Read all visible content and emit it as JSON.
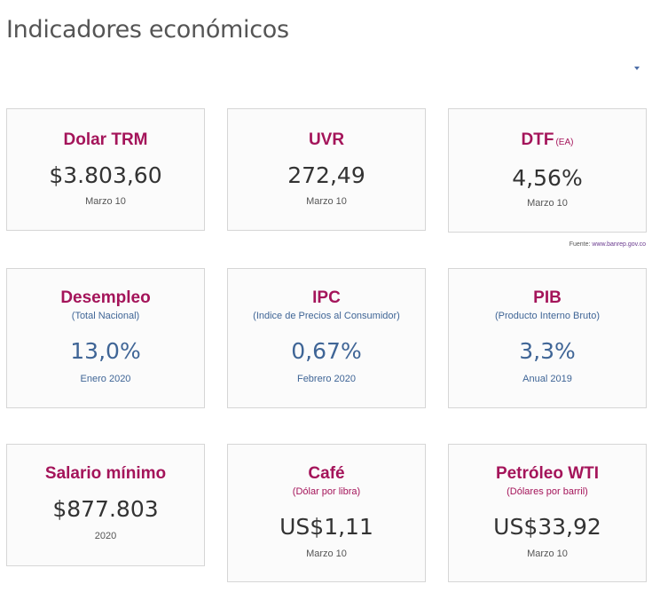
{
  "page": {
    "title": "Indicadores económicos"
  },
  "source": {
    "label": "Fuente:",
    "link": "www.banrep.gov.co"
  },
  "cards": {
    "trm": {
      "name": "Dolar TRM",
      "value": "$3.803,60",
      "date": "Marzo 10"
    },
    "uvr": {
      "name": "UVR",
      "value": "272,49",
      "date": "Marzo 10"
    },
    "dtf": {
      "name": "DTF",
      "unit": "(EA)",
      "value": "4,56%",
      "date": "Marzo 10"
    },
    "desempleo": {
      "name": "Desempleo",
      "subtitle": "(Total Nacional)",
      "value": "13,0%",
      "date": "Enero 2020"
    },
    "ipc": {
      "name": "IPC",
      "subtitle": "(Indice de Precios al Consumidor)",
      "value": "0,67%",
      "date": "Febrero 2020"
    },
    "pib": {
      "name": "PIB",
      "subtitle": "(Producto Interno Bruto)",
      "value": "3,3%",
      "date": "Anual 2019"
    },
    "salario": {
      "name": "Salario mínimo",
      "value": "$877.803",
      "date": "2020"
    },
    "cafe": {
      "name": "Café",
      "subtitle": "(Dólar por libra)",
      "value": "US$1,11",
      "date": "Marzo 10"
    },
    "petroleo": {
      "name": "Petróleo WTI",
      "subtitle": "(Dólares por barril)",
      "value": "US$33,92",
      "date": "Marzo 10"
    }
  },
  "colors": {
    "accent": "#a4145a",
    "blue": "#3f6596",
    "text": "#333333",
    "border": "#d6d6d6"
  }
}
